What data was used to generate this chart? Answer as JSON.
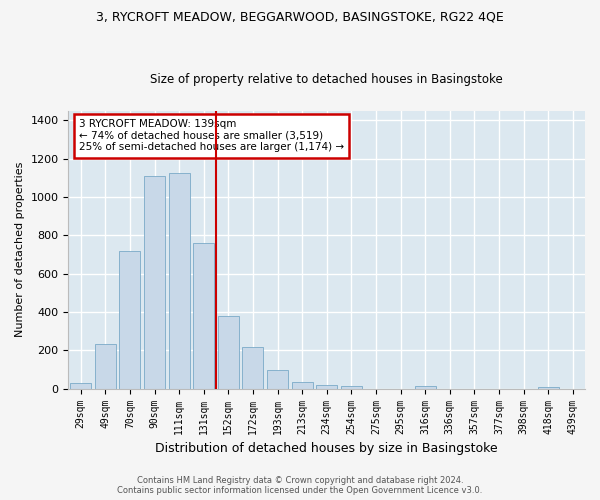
{
  "title": "3, RYCROFT MEADOW, BEGGARWOOD, BASINGSTOKE, RG22 4QE",
  "subtitle": "Size of property relative to detached houses in Basingstoke",
  "xlabel": "Distribution of detached houses by size in Basingstoke",
  "ylabel": "Number of detached properties",
  "categories": [
    "29sqm",
    "49sqm",
    "70sqm",
    "90sqm",
    "111sqm",
    "131sqm",
    "152sqm",
    "172sqm",
    "193sqm",
    "213sqm",
    "234sqm",
    "254sqm",
    "275sqm",
    "295sqm",
    "316sqm",
    "336sqm",
    "357sqm",
    "377sqm",
    "398sqm",
    "418sqm",
    "439sqm"
  ],
  "bar_heights": [
    30,
    235,
    720,
    1110,
    1125,
    760,
    380,
    220,
    100,
    35,
    20,
    15,
    0,
    0,
    15,
    0,
    0,
    0,
    0,
    10,
    0
  ],
  "bar_color": "#c8d8e8",
  "bar_edge_color": "#7aaac8",
  "property_line_x": 5.5,
  "property_line_label": "3 RYCROFT MEADOW: 139sqm",
  "annotation_line1": "← 74% of detached houses are smaller (3,519)",
  "annotation_line2": "25% of semi-detached houses are larger (1,174) →",
  "annotation_box_color": "#ffffff",
  "annotation_box_edge": "#cc0000",
  "vline_color": "#cc0000",
  "ylim": [
    0,
    1450
  ],
  "yticks": [
    0,
    200,
    400,
    600,
    800,
    1000,
    1200,
    1400
  ],
  "background_color": "#dce8f0",
  "fig_background_color": "#f5f5f5",
  "grid_color": "#ffffff",
  "footer1": "Contains HM Land Registry data © Crown copyright and database right 2024.",
  "footer2": "Contains public sector information licensed under the Open Government Licence v3.0."
}
